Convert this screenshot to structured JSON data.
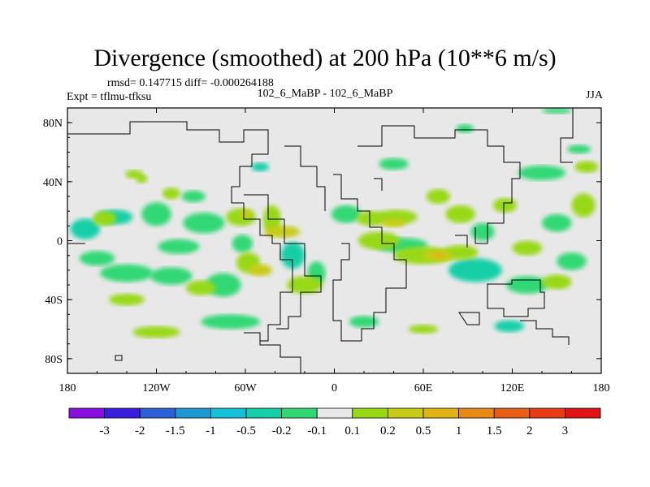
{
  "chart_data": {
    "type": "heatmap",
    "title": "Divergence (smoothed) at 200 hPa (10**6 m/s)",
    "stats_text": "rmsd= 0.147715 diff= -0.000264188",
    "experiment_text": "Expt = tflmu-tfksu",
    "center_text": "102_6_MaBP - 102_6_MaBP",
    "season": "JJA",
    "xlim": [
      -180,
      180
    ],
    "ylim": [
      -90,
      90
    ],
    "x_ticks": [
      {
        "value": -180,
        "label": "180"
      },
      {
        "value": -120,
        "label": "120W"
      },
      {
        "value": -60,
        "label": "60W"
      },
      {
        "value": 0,
        "label": "0"
      },
      {
        "value": 60,
        "label": "60E"
      },
      {
        "value": 120,
        "label": "120E"
      },
      {
        "value": 180,
        "label": "180"
      }
    ],
    "y_ticks": [
      {
        "value": 80,
        "label": "80N"
      },
      {
        "value": 40,
        "label": "40N"
      },
      {
        "value": 0,
        "label": "0"
      },
      {
        "value": -40,
        "label": "40S"
      },
      {
        "value": -80,
        "label": "80S"
      }
    ],
    "colorbar": {
      "labels": [
        "-3",
        "-2",
        "-1.5",
        "-1",
        "-0.5",
        "-0.2",
        "-0.1",
        "0.1",
        "0.2",
        "0.5",
        "1",
        "1.5",
        "2",
        "3"
      ],
      "colors": [
        "#8a10e0",
        "#3a1ee0",
        "#2c60d8",
        "#1e98d4",
        "#14c2d8",
        "#14cfa8",
        "#30d874",
        "#e8e8e8",
        "#98d814",
        "#c8cc18",
        "#e0b414",
        "#e68a14",
        "#e85e14",
        "#e83a14",
        "#e01414"
      ]
    },
    "regions": [
      {
        "lon": -168,
        "lat": 8,
        "rlon": 10,
        "rlat": 7,
        "level": 5
      },
      {
        "lon": -148,
        "lat": 16,
        "rlon": 12,
        "rlat": 5,
        "level": 5
      },
      {
        "lon": -120,
        "lat": 18,
        "rlon": 10,
        "rlat": 8,
        "level": 6
      },
      {
        "lon": -88,
        "lat": 12,
        "rlon": 14,
        "rlat": 7,
        "level": 6
      },
      {
        "lon": -105,
        "lat": -4,
        "rlon": 14,
        "rlat": 5,
        "level": 6
      },
      {
        "lon": -160,
        "lat": -12,
        "rlon": 12,
        "rlat": 5,
        "level": 6
      },
      {
        "lon": -140,
        "lat": -22,
        "rlon": 18,
        "rlat": 6,
        "level": 6
      },
      {
        "lon": -110,
        "lat": -24,
        "rlon": 14,
        "rlat": 6,
        "level": 6
      },
      {
        "lon": -75,
        "lat": -30,
        "rlon": 12,
        "rlat": 8,
        "level": 6
      },
      {
        "lon": -62,
        "lat": -2,
        "rlon": 7,
        "rlat": 6,
        "level": 6
      },
      {
        "lon": -28,
        "lat": -10,
        "rlon": 8,
        "rlat": 9,
        "level": 5
      },
      {
        "lon": -12,
        "lat": -22,
        "rlon": 6,
        "rlat": 8,
        "level": 6
      },
      {
        "lon": 8,
        "lat": 18,
        "rlon": 10,
        "rlat": 6,
        "level": 6
      },
      {
        "lon": 45,
        "lat": -3,
        "rlon": 18,
        "rlat": 5,
        "level": 6
      },
      {
        "lon": 95,
        "lat": -20,
        "rlon": 18,
        "rlat": 8,
        "level": 5
      },
      {
        "lon": 130,
        "lat": -30,
        "rlon": 14,
        "rlat": 6,
        "level": 6
      },
      {
        "lon": 160,
        "lat": -14,
        "rlon": 10,
        "rlat": 6,
        "level": 6
      },
      {
        "lon": 150,
        "lat": 12,
        "rlon": 10,
        "rlat": 6,
        "level": 6
      },
      {
        "lon": 100,
        "lat": 6,
        "rlon": 8,
        "rlat": 6,
        "level": 6
      },
      {
        "lon": -95,
        "lat": 30,
        "rlon": 8,
        "rlat": 4,
        "level": 6
      },
      {
        "lon": -50,
        "lat": 50,
        "rlon": 6,
        "rlat": 3,
        "level": 5
      },
      {
        "lon": 40,
        "lat": 52,
        "rlon": 10,
        "rlat": 4,
        "level": 6
      },
      {
        "lon": 140,
        "lat": 46,
        "rlon": 16,
        "rlat": 5,
        "level": 6
      },
      {
        "lon": 165,
        "lat": 62,
        "rlon": 8,
        "rlat": 3,
        "level": 6
      },
      {
        "lon": 88,
        "lat": 76,
        "rlon": 6,
        "rlat": 3,
        "level": 6
      },
      {
        "lon": 150,
        "lat": 88,
        "rlon": 10,
        "rlat": 2,
        "level": 6
      },
      {
        "lon": -70,
        "lat": -55,
        "rlon": 20,
        "rlat": 5,
        "level": 6
      },
      {
        "lon": 20,
        "lat": -55,
        "rlon": 10,
        "rlat": 4,
        "level": 6
      },
      {
        "lon": 118,
        "lat": -58,
        "rlon": 10,
        "rlat": 4,
        "level": 5
      },
      {
        "lon": -130,
        "lat": 42,
        "rlon": 4,
        "rlat": 3,
        "level": 8
      },
      {
        "lon": -110,
        "lat": 32,
        "rlon": 6,
        "rlat": 4,
        "level": 8
      },
      {
        "lon": -63,
        "lat": 16,
        "rlon": 10,
        "rlat": 6,
        "level": 8
      },
      {
        "lon": -42,
        "lat": 14,
        "rlon": 6,
        "rlat": 10,
        "level": 8
      },
      {
        "lon": -58,
        "lat": -15,
        "rlon": 8,
        "rlat": 7,
        "level": 8
      },
      {
        "lon": -90,
        "lat": -32,
        "rlon": 10,
        "rlat": 5,
        "level": 8
      },
      {
        "lon": -140,
        "lat": -40,
        "rlon": 12,
        "rlat": 4,
        "level": 8
      },
      {
        "lon": -20,
        "lat": -30,
        "rlon": 12,
        "rlat": 6,
        "level": 8
      },
      {
        "lon": 30,
        "lat": 0,
        "rlon": 14,
        "rlat": 6,
        "level": 8
      },
      {
        "lon": 60,
        "lat": -10,
        "rlon": 20,
        "rlat": 6,
        "level": 8
      },
      {
        "lon": 25,
        "lat": 15,
        "rlon": 10,
        "rlat": 5,
        "level": 8
      },
      {
        "lon": 42,
        "lat": 16,
        "rlon": 14,
        "rlat": 5,
        "level": 8
      },
      {
        "lon": 85,
        "lat": 18,
        "rlon": 10,
        "rlat": 6,
        "level": 8
      },
      {
        "lon": 85,
        "lat": -8,
        "rlon": 12,
        "rlat": 5,
        "level": 8
      },
      {
        "lon": 115,
        "lat": 24,
        "rlon": 8,
        "rlat": 5,
        "level": 8
      },
      {
        "lon": 130,
        "lat": -5,
        "rlon": 10,
        "rlat": 5,
        "level": 8
      },
      {
        "lon": 150,
        "lat": -28,
        "rlon": 10,
        "rlat": 5,
        "level": 8
      },
      {
        "lon": 168,
        "lat": 24,
        "rlon": 8,
        "rlat": 8,
        "level": 8
      },
      {
        "lon": 70,
        "lat": 30,
        "rlon": 8,
        "rlat": 5,
        "level": 8
      },
      {
        "lon": 170,
        "lat": 50,
        "rlon": 8,
        "rlat": 4,
        "level": 8
      },
      {
        "lon": -135,
        "lat": 45,
        "rlon": 6,
        "rlat": 3,
        "level": 8
      },
      {
        "lon": -155,
        "lat": 15,
        "rlon": 8,
        "rlat": 5,
        "level": 8
      },
      {
        "lon": -120,
        "lat": -62,
        "rlon": 16,
        "rlat": 4,
        "level": 8
      },
      {
        "lon": 60,
        "lat": -60,
        "rlon": 10,
        "rlat": 3,
        "level": 8
      },
      {
        "lon": -35,
        "lat": 6,
        "rlon": 12,
        "rlat": 4,
        "level": 9
      },
      {
        "lon": -50,
        "lat": -20,
        "rlon": 8,
        "rlat": 4,
        "level": 9
      },
      {
        "lon": 70,
        "lat": -10,
        "rlon": 10,
        "rlat": 4,
        "level": 9
      },
      {
        "lon": 40,
        "lat": 12,
        "rlon": 8,
        "rlat": 3,
        "level": 9
      },
      {
        "lon": -60,
        "lat": 18,
        "rlon": 4,
        "rlat": 3,
        "level": 9
      },
      {
        "lon": 70,
        "lat": -10,
        "rlon": 4,
        "rlat": 2,
        "level": 10
      }
    ]
  }
}
